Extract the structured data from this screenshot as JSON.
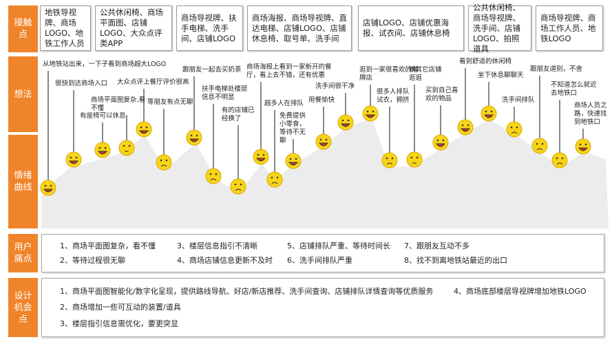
{
  "row_labels": {
    "touchpoints": "接触点",
    "thoughts": "想法",
    "emotion": "情绪曲线",
    "pain_points": "用户痛点",
    "opportunities": "设计机会点"
  },
  "touchpoints": [
    "地铁导视牌、商场LOGO、地铁工作人员",
    "公共休闲椅、商场平面图、店铺LOGO、大众点评类APP",
    "商场导视牌、扶手电梯、洗手间、店铺LOGO",
    "商场海报、商场导视牌、直达电梯、店铺LOGO、店铺休息椅、取号单、洗手间",
    "店铺LOGO、店铺优惠海报、试衣间、店铺休息椅",
    "公共休闲椅、商场导视牌、洗手间、店铺LOGO、拍照道具",
    "商场导视牌、商场工作人员、地铁LOGO"
  ],
  "thoughts": [
    {
      "text": "从地铁站出来，一下子看到商场超大LOGO",
      "mood": "happy"
    },
    {
      "text": "很快到达商场入口",
      "mood": "happy"
    },
    {
      "text": "有座椅可以休息",
      "mood": "happy"
    },
    {
      "text": "商场平面图复杂,看不懂",
      "mood": "neutral"
    },
    {
      "text": "大众点评上餐厅评价很高",
      "mood": "happy"
    },
    {
      "text": "等朋友有点无聊",
      "mood": "sad"
    },
    {
      "text": "跟朋友一起去买奶茶",
      "mood": "happy"
    },
    {
      "text": "扶手电梯处楼层信息不明显",
      "mood": "sad"
    },
    {
      "text": "有的店铺已经换了",
      "mood": "sad"
    },
    {
      "text": "商场海报上看到一家新开的餐厅，看上去不错，还有优惠",
      "mood": "happy"
    },
    {
      "text": "超多人在排队",
      "mood": "sad"
    },
    {
      "text": "免费提供小零食，等待不无聊",
      "mood": "happy"
    },
    {
      "text": "用餐愉快",
      "mood": "happy"
    },
    {
      "text": "洗手间很干净",
      "mood": "happy"
    },
    {
      "text": "逛到一家很喜欢的潮牌店",
      "mood": "happy"
    },
    {
      "text": "很多人排队试衣，拥挤",
      "mood": "sad"
    },
    {
      "text": "换其它店铺逛逛",
      "mood": "neutral"
    },
    {
      "text": "买到自己喜欢的物品",
      "mood": "happy"
    },
    {
      "text": "看到舒适的休闲椅",
      "mood": "happy"
    },
    {
      "text": "坐下休息聊聊天",
      "mood": "happy"
    },
    {
      "text": "洗手间排队",
      "mood": "sad"
    },
    {
      "text": "跟朋友道别，不舍",
      "mood": "sad"
    },
    {
      "text": "不知道怎么就近去地铁口",
      "mood": "sad"
    },
    {
      "text": "商场人员之路，快速找到地铁口",
      "mood": "happy"
    }
  ],
  "pain_points": [
    "1、商场平面图复杂，看不懂",
    "2、等待过程很无聊",
    "3、楼层信息指引不清晰",
    "4、商场店铺信息更新不及时",
    "5、店铺排队严重、等待时间长",
    "6、洗手间排队严重",
    "7、跟朋友互动不多",
    "8、找不到离地铁站最近的出口"
  ],
  "opportunities": [
    "1、商场平面图智能化/数字化呈现，提供路线导航、好店/新店推荐、洗手间查询、店铺排队详情查询等优质服务",
    "2、商场增加一些可互动的装置/道具",
    "3、楼层指引信息需优化，要更突显",
    "4、商场底部楼层导视牌增加地铁LOGO"
  ],
  "colors": {
    "accent": "#f0842a",
    "face": "#f7d417",
    "curve": "#ececec"
  }
}
